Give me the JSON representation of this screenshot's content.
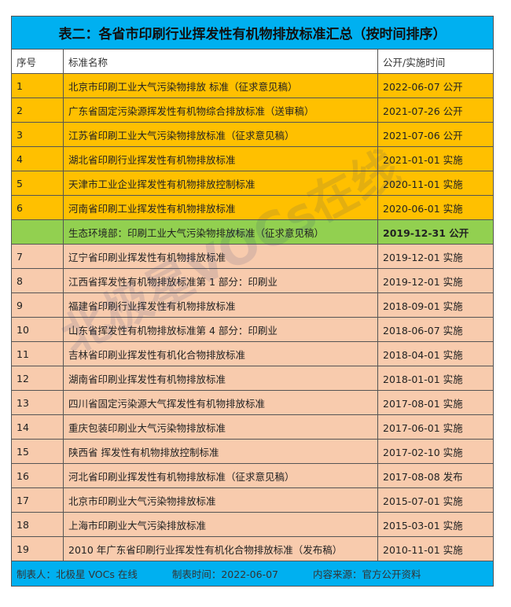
{
  "title": "表二：各省市印刷行业挥发性有机物排放标准汇总（按时间排序）",
  "headers": [
    "序号",
    "标准名称",
    "公开/实施时间"
  ],
  "rows": [
    {
      "no": "1",
      "name": "北京市印刷工业大气污染物排放 标准（征求意见稿）",
      "date": "2022-06-07 公开",
      "color": "orange"
    },
    {
      "no": "2",
      "name": "广东省固定污染源挥发性有机物综合排放标准（送审稿）",
      "date": "2021-07-26 公开",
      "color": "orange"
    },
    {
      "no": "3",
      "name": "江苏省印刷工业大气污染物排放标准（征求意见稿）",
      "date": "2021-07-06 公开",
      "color": "orange"
    },
    {
      "no": "4",
      "name": "湖北省印刷行业挥发性有机物排放标准",
      "date": "2021-01-01 实施",
      "color": "orange"
    },
    {
      "no": "5",
      "name": "天津市工业企业挥发性有机物排放控制标准",
      "date": "2020-11-01 实施",
      "color": "orange"
    },
    {
      "no": "6",
      "name": "河南省印刷工业挥发性有机物排放标准",
      "date": "2020-06-01 实施",
      "color": "orange"
    },
    {
      "no": "",
      "name": "生态环境部：印刷工业大气污染物排放标准（征求意见稿）",
      "date": "2019-12-31 公开",
      "color": "green"
    },
    {
      "no": "7",
      "name": "辽宁省印刷业挥发性有机物排放标准",
      "date": "2019-12-01 实施",
      "color": "peach"
    },
    {
      "no": "8",
      "name": "江西省挥发性有机物排放标准第 1 部分：印刷业",
      "date": "2019-12-01 实施",
      "color": "peach"
    },
    {
      "no": "9",
      "name": "福建省印刷行业挥发性有机物排放标准",
      "date": "2018-09-01 实施",
      "color": "peach"
    },
    {
      "no": "10",
      "name": "山东省挥发性有机物排放标准第 4 部分：印刷业",
      "date": "2018-06-07 实施",
      "color": "peach"
    },
    {
      "no": "11",
      "name": "吉林省印刷业挥发性有机化合物排放标准",
      "date": "2018-04-01 实施",
      "color": "peach"
    },
    {
      "no": "12",
      "name": "湖南省印刷业挥发性有机物排放标准",
      "date": "2018-01-01 实施",
      "color": "peach"
    },
    {
      "no": "13",
      "name": "四川省固定污染源大气挥发性有机物排放标准",
      "date": "2017-08-01 实施",
      "color": "peach"
    },
    {
      "no": "14",
      "name": "重庆包装印刷业大气污染物排放标准",
      "date": "2017-06-01 实施",
      "color": "peach"
    },
    {
      "no": "15",
      "name": "陕西省 挥发性有机物排放控制标准",
      "date": "2017-02-10 实施",
      "color": "peach"
    },
    {
      "no": "16",
      "name": "河北省印刷业挥发性有机物排放标准（征求意见稿）",
      "date": "2017-08-08 发布",
      "color": "peach"
    },
    {
      "no": "17",
      "name": "北京市印刷业大气污染物排放标准",
      "date": "2015-07-01 实施",
      "color": "peach"
    },
    {
      "no": "18",
      "name": "上海市印刷业大气污染排放标准",
      "date": "2015-03-01 实施",
      "color": "peach"
    },
    {
      "no": "19",
      "name": "2010 年广东省印刷行业挥发性有机化合物排放标准（发布稿）",
      "date": "2010-11-01 实施",
      "color": "peach"
    }
  ],
  "footer": {
    "maker": "制表人：北极星 VOCs 在线",
    "time": "制表时间：2022-06-07",
    "source": "内容来源：官方公开资料"
  },
  "watermark": "北极星VOCs在线",
  "colors": {
    "title": "#00B0F0",
    "orange": "#FFC000",
    "green": "#92D050",
    "peach": "#F8CBAD"
  }
}
